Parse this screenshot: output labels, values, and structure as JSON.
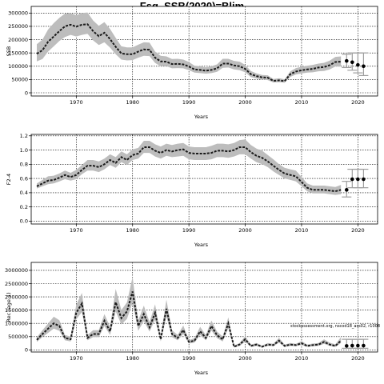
{
  "figure_title": "Fsq, SSB(2020)=Blim",
  "watermark": "stockassessment.org, nscod18_ass02, r1008",
  "colors": {
    "band": "#bdbdbd",
    "line": "#1a1a1a",
    "grid": "#000000"
  },
  "chart_data": [
    {
      "type": "line",
      "title": "",
      "xlabel": "Years",
      "ylabel": "SSB",
      "xlim": [
        1962,
        2023.5
      ],
      "ylim": [
        -12000,
        325000
      ],
      "xticks": [
        1970,
        1980,
        1990,
        2000,
        2010,
        2020
      ],
      "yticks": [
        0,
        50000,
        100000,
        150000,
        200000,
        250000,
        300000
      ],
      "grid": true,
      "series": [
        {
          "style": "band-line",
          "x": [
            1963,
            1964,
            1965,
            1966,
            1967,
            1968,
            1969,
            1970,
            1971,
            1972,
            1973,
            1974,
            1975,
            1976,
            1977,
            1978,
            1979,
            1980,
            1981,
            1982,
            1983,
            1984,
            1985,
            1986,
            1987,
            1988,
            1989,
            1990,
            1991,
            1992,
            1993,
            1994,
            1995,
            1996,
            1997,
            1998,
            1999,
            2000,
            2001,
            2002,
            2003,
            2004,
            2005,
            2006,
            2007,
            2008,
            2009,
            2010,
            2011,
            2012,
            2013,
            2014,
            2015,
            2016,
            2017
          ],
          "y": [
            147000,
            160000,
            192000,
            212000,
            232000,
            250000,
            256000,
            249000,
            256000,
            258000,
            232000,
            213000,
            226000,
            202000,
            173000,
            148000,
            145000,
            145000,
            155000,
            163000,
            162000,
            132000,
            118000,
            117000,
            108000,
            109000,
            107000,
            99000,
            88000,
            86000,
            83000,
            86000,
            92000,
            110000,
            110000,
            103000,
            100000,
            90000,
            70000,
            63000,
            58000,
            57000,
            45000,
            47000,
            44000,
            70000,
            80000,
            85000,
            88000,
            90000,
            95000,
            97000,
            104000,
            116000,
            117000
          ],
          "lower": [
            118000,
            127000,
            155000,
            175000,
            195000,
            210000,
            218000,
            212000,
            218000,
            222000,
            197000,
            180000,
            190000,
            170000,
            145000,
            125000,
            122000,
            123000,
            132000,
            139000,
            138000,
            112000,
            100000,
            100000,
            92000,
            93000,
            92000,
            85000,
            76000,
            74000,
            72000,
            74000,
            79000,
            94000,
            95000,
            88000,
            85000,
            77000,
            59000,
            54000,
            50000,
            48000,
            39000,
            40000,
            38000,
            60000,
            69000,
            73000,
            76000,
            77000,
            81000,
            82000,
            88000,
            99000,
            99000
          ],
          "upper": [
            183000,
            200000,
            238000,
            262000,
            282000,
            298000,
            300000,
            292000,
            300000,
            302000,
            272000,
            252000,
            266000,
            240000,
            207000,
            175000,
            171000,
            171000,
            181000,
            190000,
            189000,
            155000,
            139000,
            137000,
            127000,
            128000,
            125000,
            116000,
            102000,
            100000,
            96000,
            100000,
            107000,
            128000,
            128000,
            120000,
            117000,
            105000,
            82000,
            73000,
            67000,
            66000,
            52000,
            55000,
            51000,
            81000,
            93000,
            98000,
            102000,
            105000,
            110000,
            113000,
            121000,
            135000,
            137000
          ]
        },
        {
          "style": "forecast-points",
          "x": [
            2018,
            2019,
            2020,
            2021
          ],
          "y": [
            120000,
            115000,
            105000,
            100000
          ],
          "lower": [
            95000,
            85000,
            75000,
            65000
          ],
          "upper": [
            145000,
            150000,
            150000,
            150000
          ]
        }
      ]
    },
    {
      "type": "line",
      "title": "",
      "xlabel": "Years",
      "ylabel": "F2-4",
      "xlim": [
        1962,
        2023.5
      ],
      "ylim": [
        -0.04,
        1.22
      ],
      "xticks": [
        1970,
        1980,
        1990,
        2000,
        2010,
        2020
      ],
      "yticks": [
        0.0,
        0.2,
        0.4,
        0.6,
        0.8,
        1.0,
        1.2
      ],
      "ytick_labels": [
        "0.0",
        "0.2",
        "0.4",
        "0.6",
        "0.8",
        "1.0",
        "1.2"
      ],
      "grid": true,
      "series": [
        {
          "style": "band-line",
          "x": [
            1963,
            1964,
            1965,
            1966,
            1967,
            1968,
            1969,
            1970,
            1971,
            1972,
            1973,
            1974,
            1975,
            1976,
            1977,
            1978,
            1979,
            1980,
            1981,
            1982,
            1983,
            1984,
            1985,
            1986,
            1987,
            1988,
            1989,
            1990,
            1991,
            1992,
            1993,
            1994,
            1995,
            1996,
            1997,
            1998,
            1999,
            2000,
            2001,
            2002,
            2003,
            2004,
            2005,
            2006,
            2007,
            2008,
            2009,
            2010,
            2011,
            2012,
            2013,
            2014,
            2015,
            2016,
            2017
          ],
          "y": [
            0.49,
            0.53,
            0.57,
            0.58,
            0.61,
            0.65,
            0.62,
            0.65,
            0.72,
            0.78,
            0.78,
            0.76,
            0.8,
            0.86,
            0.82,
            0.9,
            0.86,
            0.93,
            0.95,
            1.04,
            1.04,
            0.99,
            0.96,
            1.0,
            0.98,
            1.0,
            1.01,
            0.96,
            0.95,
            0.95,
            0.95,
            0.96,
            0.99,
            0.99,
            0.98,
            1.0,
            1.04,
            1.04,
            0.97,
            0.92,
            0.89,
            0.84,
            0.78,
            0.72,
            0.67,
            0.65,
            0.63,
            0.55,
            0.47,
            0.44,
            0.44,
            0.44,
            0.43,
            0.42,
            0.44
          ],
          "lower": [
            0.46,
            0.49,
            0.52,
            0.53,
            0.56,
            0.59,
            0.57,
            0.59,
            0.66,
            0.71,
            0.71,
            0.69,
            0.73,
            0.79,
            0.75,
            0.83,
            0.79,
            0.86,
            0.88,
            0.96,
            0.96,
            0.91,
            0.88,
            0.92,
            0.9,
            0.91,
            0.92,
            0.87,
            0.86,
            0.86,
            0.86,
            0.87,
            0.9,
            0.9,
            0.89,
            0.91,
            0.94,
            0.94,
            0.88,
            0.83,
            0.8,
            0.76,
            0.7,
            0.65,
            0.6,
            0.58,
            0.56,
            0.49,
            0.42,
            0.39,
            0.39,
            0.39,
            0.38,
            0.37,
            0.38
          ],
          "upper": [
            0.53,
            0.58,
            0.63,
            0.64,
            0.67,
            0.71,
            0.68,
            0.72,
            0.79,
            0.86,
            0.86,
            0.84,
            0.88,
            0.94,
            0.9,
            0.98,
            0.94,
            1.01,
            1.03,
            1.13,
            1.13,
            1.08,
            1.05,
            1.09,
            1.07,
            1.09,
            1.1,
            1.05,
            1.04,
            1.04,
            1.04,
            1.06,
            1.09,
            1.09,
            1.08,
            1.1,
            1.14,
            1.15,
            1.07,
            1.02,
            0.99,
            0.93,
            0.87,
            0.8,
            0.75,
            0.73,
            0.71,
            0.62,
            0.53,
            0.5,
            0.5,
            0.5,
            0.49,
            0.48,
            0.51
          ]
        },
        {
          "style": "forecast-points",
          "x": [
            2018,
            2019,
            2020,
            2021
          ],
          "y": [
            0.44,
            0.59,
            0.59,
            0.59
          ],
          "lower": [
            0.34,
            0.47,
            0.47,
            0.47
          ],
          "upper": [
            0.56,
            0.73,
            0.73,
            0.73
          ]
        }
      ]
    },
    {
      "type": "line",
      "title": "",
      "xlabel": "Years",
      "ylabel": "Rec (age 1)",
      "xlim": [
        1962,
        2023.5
      ],
      "ylim": [
        -80000,
        3300000
      ],
      "xticks": [
        1970,
        1980,
        1990,
        2000,
        2010,
        2020
      ],
      "yticks": [
        0,
        500000,
        1000000,
        1500000,
        2000000,
        2500000,
        3000000
      ],
      "grid": true,
      "series": [
        {
          "style": "band-line",
          "x": [
            1963,
            1964,
            1965,
            1966,
            1967,
            1968,
            1969,
            1970,
            1971,
            1972,
            1973,
            1974,
            1975,
            1976,
            1977,
            1978,
            1979,
            1980,
            1981,
            1982,
            1983,
            1984,
            1985,
            1986,
            1987,
            1988,
            1989,
            1990,
            1991,
            1992,
            1993,
            1994,
            1995,
            1996,
            1997,
            1998,
            1999,
            2000,
            2001,
            2002,
            2003,
            2004,
            2005,
            2006,
            2007,
            2008,
            2009,
            2010,
            2011,
            2012,
            2013,
            2014,
            2015,
            2016,
            2017
          ],
          "y": [
            380000,
            600000,
            800000,
            1000000,
            900000,
            450000,
            400000,
            1400000,
            1750000,
            450000,
            600000,
            600000,
            1100000,
            700000,
            1800000,
            1200000,
            1450000,
            2200000,
            900000,
            1350000,
            850000,
            1400000,
            400000,
            1550000,
            600000,
            450000,
            750000,
            300000,
            350000,
            700000,
            450000,
            900000,
            550000,
            400000,
            1000000,
            120000,
            200000,
            400000,
            150000,
            200000,
            120000,
            200000,
            180000,
            350000,
            150000,
            200000,
            180000,
            250000,
            150000,
            180000,
            200000,
            300000,
            200000,
            150000,
            350000
          ],
          "lower": [
            300000,
            480000,
            640000,
            800000,
            720000,
            360000,
            320000,
            1150000,
            1430000,
            360000,
            480000,
            480000,
            900000,
            560000,
            1450000,
            960000,
            1170000,
            1780000,
            720000,
            1090000,
            690000,
            1140000,
            320000,
            1260000,
            480000,
            360000,
            600000,
            240000,
            280000,
            560000,
            360000,
            730000,
            440000,
            320000,
            820000,
            90000,
            150000,
            310000,
            110000,
            150000,
            90000,
            150000,
            140000,
            270000,
            110000,
            150000,
            140000,
            190000,
            110000,
            140000,
            150000,
            230000,
            150000,
            110000,
            260000
          ],
          "upper": [
            470000,
            740000,
            990000,
            1250000,
            1120000,
            560000,
            500000,
            1700000,
            2150000,
            560000,
            740000,
            740000,
            1350000,
            870000,
            2300000,
            1500000,
            1790000,
            2750000,
            1110000,
            1670000,
            1050000,
            1720000,
            500000,
            1900000,
            740000,
            560000,
            920000,
            370000,
            440000,
            870000,
            560000,
            1110000,
            690000,
            500000,
            1230000,
            160000,
            260000,
            510000,
            200000,
            260000,
            160000,
            260000,
            230000,
            450000,
            200000,
            260000,
            230000,
            330000,
            200000,
            240000,
            260000,
            400000,
            270000,
            210000,
            480000
          ]
        },
        {
          "style": "forecast-points",
          "x": [
            2018,
            2019,
            2020,
            2021
          ],
          "y": [
            150000,
            160000,
            160000,
            160000
          ],
          "lower": [
            60000,
            60000,
            60000,
            60000
          ],
          "upper": [
            400000,
            400000,
            400000,
            400000
          ]
        }
      ]
    }
  ]
}
